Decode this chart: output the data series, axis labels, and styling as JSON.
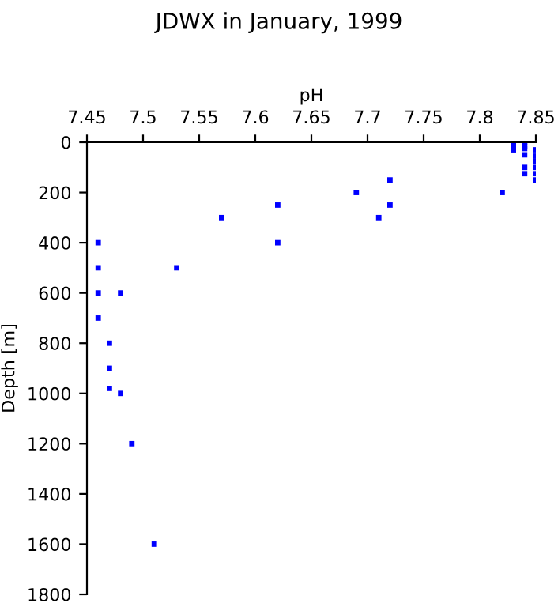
{
  "chart_data": {
    "type": "scatter",
    "title": "JDWX in January, 1999",
    "xlabel": "pH",
    "ylabel": "Depth [m]",
    "marker": "square",
    "grid": false,
    "xlim": [
      7.45,
      7.85
    ],
    "xticks": [
      7.45,
      7.5,
      7.55,
      7.6,
      7.65,
      7.7,
      7.75,
      7.8,
      7.85
    ],
    "ylim": [
      1800,
      0
    ],
    "yticks": [
      0,
      200,
      400,
      600,
      800,
      1000,
      1200,
      1400,
      1600,
      1800
    ],
    "series": [
      {
        "color": "#0000ff",
        "x": [
          7.46,
          7.46,
          7.46,
          7.48,
          7.46,
          7.47,
          7.47,
          7.47,
          7.48,
          7.49,
          7.51,
          7.53,
          7.57,
          7.62,
          7.62,
          7.69,
          7.71,
          7.72,
          7.72,
          7.82,
          7.83,
          7.83,
          7.83,
          7.84,
          7.84,
          7.84,
          7.84,
          7.84,
          7.84,
          7.85,
          7.85,
          7.85,
          7.85,
          7.85,
          7.85
        ],
        "values": [
          400,
          500,
          600,
          600,
          700,
          800,
          900,
          980,
          1000,
          1200,
          1600,
          500,
          300,
          250,
          400,
          200,
          300,
          150,
          250,
          200,
          0,
          15,
          30,
          0,
          15,
          25,
          50,
          100,
          125,
          30,
          55,
          75,
          100,
          125,
          150
        ]
      }
    ]
  }
}
